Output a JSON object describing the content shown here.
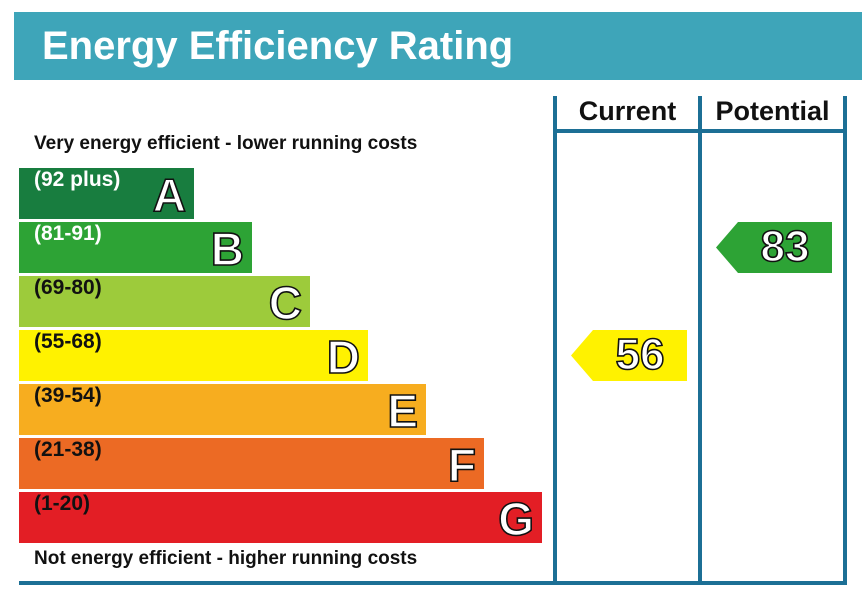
{
  "header": {
    "title": "Energy Efficiency Rating"
  },
  "columns": {
    "current": "Current",
    "potential": "Potential"
  },
  "captions": {
    "top": "Very energy efficient - lower running costs",
    "bottom": "Not energy efficient - higher running costs"
  },
  "chart_data": {
    "type": "bar",
    "title": "Energy Efficiency Rating",
    "bands": [
      {
        "letter": "A",
        "range": "(92 plus)",
        "color": "#187d3f",
        "text_color": "#ffffff"
      },
      {
        "letter": "B",
        "range": "(81-91)",
        "color": "#2da335",
        "text_color": "#ffffff"
      },
      {
        "letter": "C",
        "range": "(69-80)",
        "color": "#9dcb3b",
        "text_color": "#111111"
      },
      {
        "letter": "D",
        "range": "(55-68)",
        "color": "#fff200",
        "text_color": "#111111"
      },
      {
        "letter": "E",
        "range": "(39-54)",
        "color": "#f7ad1f",
        "text_color": "#111111"
      },
      {
        "letter": "F",
        "range": "(21-38)",
        "color": "#ec6a24",
        "text_color": "#111111"
      },
      {
        "letter": "G",
        "range": "(1-20)",
        "color": "#e31e25",
        "text_color": "#111111"
      }
    ],
    "current": {
      "value": 56,
      "band": "D",
      "color": "#fff200"
    },
    "potential": {
      "value": 83,
      "band": "B",
      "color": "#2da335"
    }
  }
}
